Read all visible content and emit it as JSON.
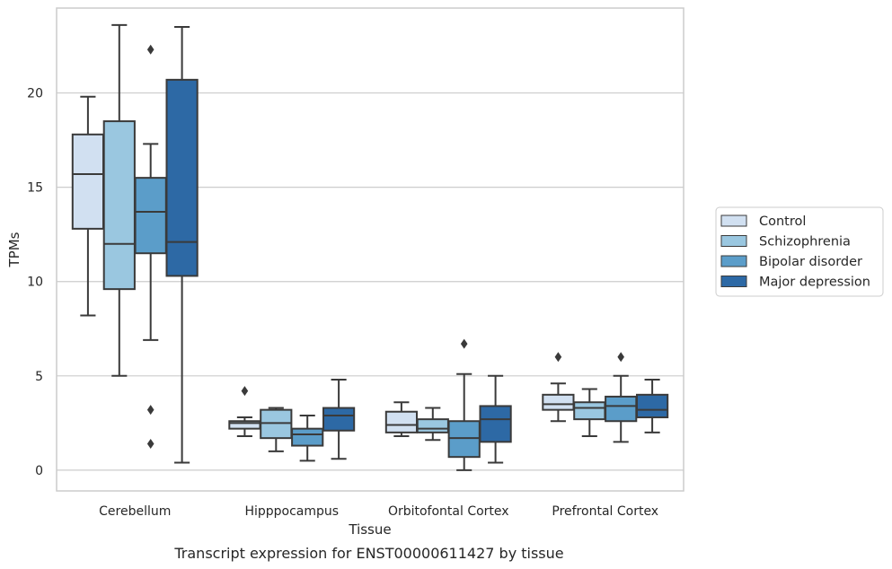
{
  "chart_data": {
    "type": "box",
    "title": "",
    "caption": "Transcript expression for ENST00000611427 by tissue",
    "xlabel": "Tissue",
    "ylabel": "TPMs",
    "ylim": [
      -1.1,
      24.5
    ],
    "yticks": [
      0,
      5,
      10,
      15,
      20
    ],
    "grid": "horizontal",
    "legend_position": "right",
    "categories": [
      "Cerebellum",
      "Hipppocampus",
      "Orbitofontal Cortex",
      "Prefrontal Cortex"
    ],
    "series": [
      {
        "name": "Control",
        "color": "#d1e0f1",
        "boxes": [
          {
            "whisker_low": 8.2,
            "q1": 12.8,
            "median": 15.7,
            "q3": 17.8,
            "whisker_high": 19.8,
            "outliers": []
          },
          {
            "whisker_low": 1.8,
            "q1": 2.2,
            "median": 2.5,
            "q3": 2.6,
            "whisker_high": 2.8,
            "outliers": [
              4.2
            ]
          },
          {
            "whisker_low": 1.8,
            "q1": 2.0,
            "median": 2.4,
            "q3": 3.1,
            "whisker_high": 3.6,
            "outliers": []
          },
          {
            "whisker_low": 2.6,
            "q1": 3.2,
            "median": 3.5,
            "q3": 4.0,
            "whisker_high": 4.6,
            "outliers": [
              6.0
            ]
          }
        ]
      },
      {
        "name": "Schizophrenia",
        "color": "#9ac7e0",
        "boxes": [
          {
            "whisker_low": 5.0,
            "q1": 9.6,
            "median": 12.0,
            "q3": 18.5,
            "whisker_high": 23.6,
            "outliers": []
          },
          {
            "whisker_low": 1.0,
            "q1": 1.7,
            "median": 2.5,
            "q3": 3.2,
            "whisker_high": 3.3,
            "outliers": []
          },
          {
            "whisker_low": 1.6,
            "q1": 2.0,
            "median": 2.2,
            "q3": 2.7,
            "whisker_high": 3.3,
            "outliers": []
          },
          {
            "whisker_low": 1.8,
            "q1": 2.7,
            "median": 3.3,
            "q3": 3.6,
            "whisker_high": 4.3,
            "outliers": []
          }
        ]
      },
      {
        "name": "Bipolar disorder",
        "color": "#5b9dc9",
        "boxes": [
          {
            "whisker_low": 6.9,
            "q1": 11.5,
            "median": 13.7,
            "q3": 15.5,
            "whisker_high": 17.3,
            "outliers": [
              22.3,
              3.2,
              1.4
            ]
          },
          {
            "whisker_low": 0.5,
            "q1": 1.3,
            "median": 1.9,
            "q3": 2.2,
            "whisker_high": 2.9,
            "outliers": []
          },
          {
            "whisker_low": 0.0,
            "q1": 0.7,
            "median": 1.7,
            "q3": 2.6,
            "whisker_high": 5.1,
            "outliers": [
              6.7
            ]
          },
          {
            "whisker_low": 1.5,
            "q1": 2.6,
            "median": 3.4,
            "q3": 3.9,
            "whisker_high": 5.0,
            "outliers": [
              6.0
            ]
          }
        ]
      },
      {
        "name": "Major depression",
        "color": "#2d69a5",
        "boxes": [
          {
            "whisker_low": 0.4,
            "q1": 10.3,
            "median": 12.1,
            "q3": 20.7,
            "whisker_high": 23.5,
            "outliers": []
          },
          {
            "whisker_low": 0.6,
            "q1": 2.1,
            "median": 2.9,
            "q3": 3.3,
            "whisker_high": 4.8,
            "outliers": []
          },
          {
            "whisker_low": 0.4,
            "q1": 1.5,
            "median": 2.7,
            "q3": 3.4,
            "whisker_high": 5.0,
            "outliers": []
          },
          {
            "whisker_low": 2.0,
            "q1": 2.8,
            "median": 3.2,
            "q3": 4.0,
            "whisker_high": 4.8,
            "outliers": []
          }
        ]
      }
    ]
  }
}
